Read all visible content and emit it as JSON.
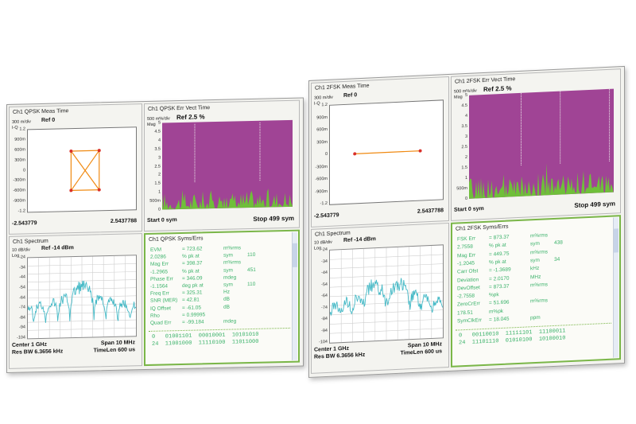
{
  "left": {
    "meas": {
      "title": "Ch1 QPSK Meas Time",
      "scale": "300 m/div",
      "fmt": "I-Q",
      "ref": "Ref 0",
      "yticks": [
        "1.2",
        "900m",
        "600m",
        "300m",
        "0",
        "-300m",
        "-600m",
        "-900m",
        "-1.2"
      ],
      "x_start": "-2.543779",
      "x_stop": "2.5437788"
    },
    "errvec": {
      "title": "Ch1 QPSK Err Vect Time",
      "scale": "500 m%/div",
      "fmt": "Mag",
      "ref": "Ref 2.5 %",
      "yticks": [
        "5",
        "4.5",
        "4",
        "3.5",
        "3",
        "2.5",
        "2",
        "1.5",
        "1",
        "500m",
        "0"
      ],
      "start": "Start 0  sym",
      "stop": "Stop 499  sym"
    },
    "spectrum": {
      "title": "Ch1 Spectrum",
      "scale": "10 dB/div",
      "fmt": "Log",
      "ref": "Ref -14 dBm",
      "yticks": [
        "-24",
        "-34",
        "-44",
        "-54",
        "-64",
        "-74",
        "-84",
        "-94",
        "-104"
      ],
      "center": "Center 1 GHz",
      "span": "Span 10 MHz",
      "rbw": "Res BW 6.3656 kHz",
      "timelen": "TimeLen 600 us"
    },
    "syms": {
      "title": "Ch1 QPSK Syms/Errs",
      "rows": [
        {
          "label": "EVM",
          "value": "= 723.62",
          "unit": "m%rms",
          "extra": ""
        },
        {
          "label": "2.0286",
          "value": "% pk  at",
          "unit": "sym",
          "extra": "110"
        },
        {
          "label": "Mag Err",
          "value": "= 398.37",
          "unit": "m%rms",
          "extra": ""
        },
        {
          "label": "-1.2965",
          "value": "% pk  at",
          "unit": "sym",
          "extra": "451"
        },
        {
          "label": "Phase Err",
          "value": "= 346.09",
          "unit": "mdeg",
          "extra": ""
        },
        {
          "label": "-1.1564",
          "value": "deg pk  at",
          "unit": "sym",
          "extra": "110"
        },
        {
          "label": "Freq Err",
          "value": "= 325.31",
          "unit": "Hz",
          "extra": ""
        },
        {
          "label": "SNR (MER)",
          "value": "= 42.81",
          "unit": "dB",
          "extra": ""
        },
        {
          "label": "IQ Offset",
          "value": "= -61.05",
          "unit": "dB",
          "extra": ""
        },
        {
          "label": "Rho",
          "value": "= 0.99995",
          "unit": "",
          "extra": ""
        },
        {
          "label": "Quad Err",
          "value": "= -99.184",
          "unit": "mdeg",
          "extra": ""
        }
      ],
      "bits": [
        "0   01001101  00010001  10101010",
        "24  11001000  11110100  11011000"
      ]
    }
  },
  "right": {
    "meas": {
      "title": "Ch1 2FSK Meas Time",
      "scale": "300 m/div",
      "fmt": "I-Q",
      "ref": "Ref 0",
      "yticks": [
        "1.2",
        "900m",
        "600m",
        "300m",
        "0",
        "-300m",
        "-600m",
        "-900m",
        "-1.2"
      ],
      "x_start": "-2.543779",
      "x_stop": "2.5437788"
    },
    "errvec": {
      "title": "Ch1 2FSK Err Vect Time",
      "scale": "500 m%/div",
      "fmt": "Mag",
      "ref": "Ref 2.5 %",
      "yticks": [
        "5",
        "4.5",
        "4",
        "3.5",
        "3",
        "2.5",
        "2",
        "1.5",
        "1",
        "500m",
        "0"
      ],
      "start": "Start 0  sym",
      "stop": "Stop 499  sym"
    },
    "spectrum": {
      "title": "Ch1 Spectrum",
      "scale": "10 dB/div",
      "fmt": "Log",
      "ref": "Ref -14 dBm",
      "yticks": [
        "-24",
        "-34",
        "-44",
        "-54",
        "-64",
        "-74",
        "-84",
        "-94",
        "-104"
      ],
      "center": "Center 1 GHz",
      "span": "Span 10 MHz",
      "rbw": "Res BW 6.3656 kHz",
      "timelen": "TimeLen 600 us"
    },
    "syms": {
      "title": "Ch1 2FSK Syms/Errs",
      "rows": [
        {
          "label": "FSK Err",
          "value": "= 873.37",
          "unit": "m%rms",
          "extra": ""
        },
        {
          "label": "2.7558",
          "value": "% pk  at",
          "unit": "sym",
          "extra": "438"
        },
        {
          "label": "Mag Err",
          "value": "= 449.75",
          "unit": "m%rms",
          "extra": ""
        },
        {
          "label": "-1.2045",
          "value": "% pk  at",
          "unit": "sym",
          "extra": "34"
        },
        {
          "label": "Carr Ofst",
          "value": "= -1.3689",
          "unit": "kHz",
          "extra": ""
        },
        {
          "label": "Deviation",
          "value": "= 2.0170",
          "unit": "MHz",
          "extra": ""
        },
        {
          "label": "DevOffset",
          "value": "= 873.37",
          "unit": "m%rms",
          "extra": ""
        },
        {
          "label": "-2.7558",
          "value": "%pk",
          "unit": "",
          "extra": ""
        },
        {
          "label": "ZeroCrErr",
          "value": "= 51.696",
          "unit": "m%rms",
          "extra": ""
        },
        {
          "label": "178.51",
          "value": "m%pk",
          "unit": "",
          "extra": ""
        },
        {
          "label": "SymClkErr",
          "value": "= 18.045",
          "unit": "ppm",
          "extra": ""
        }
      ],
      "bits": [
        "0   00110010  11111101  11100011",
        "24  11101110  01010100  10100010"
      ]
    }
  },
  "colors": {
    "trace": "#44b9c6",
    "magenta": "#a04495",
    "green": "#6fbf3a",
    "orange": "#f08a12",
    "metric": "#3bb26a"
  }
}
